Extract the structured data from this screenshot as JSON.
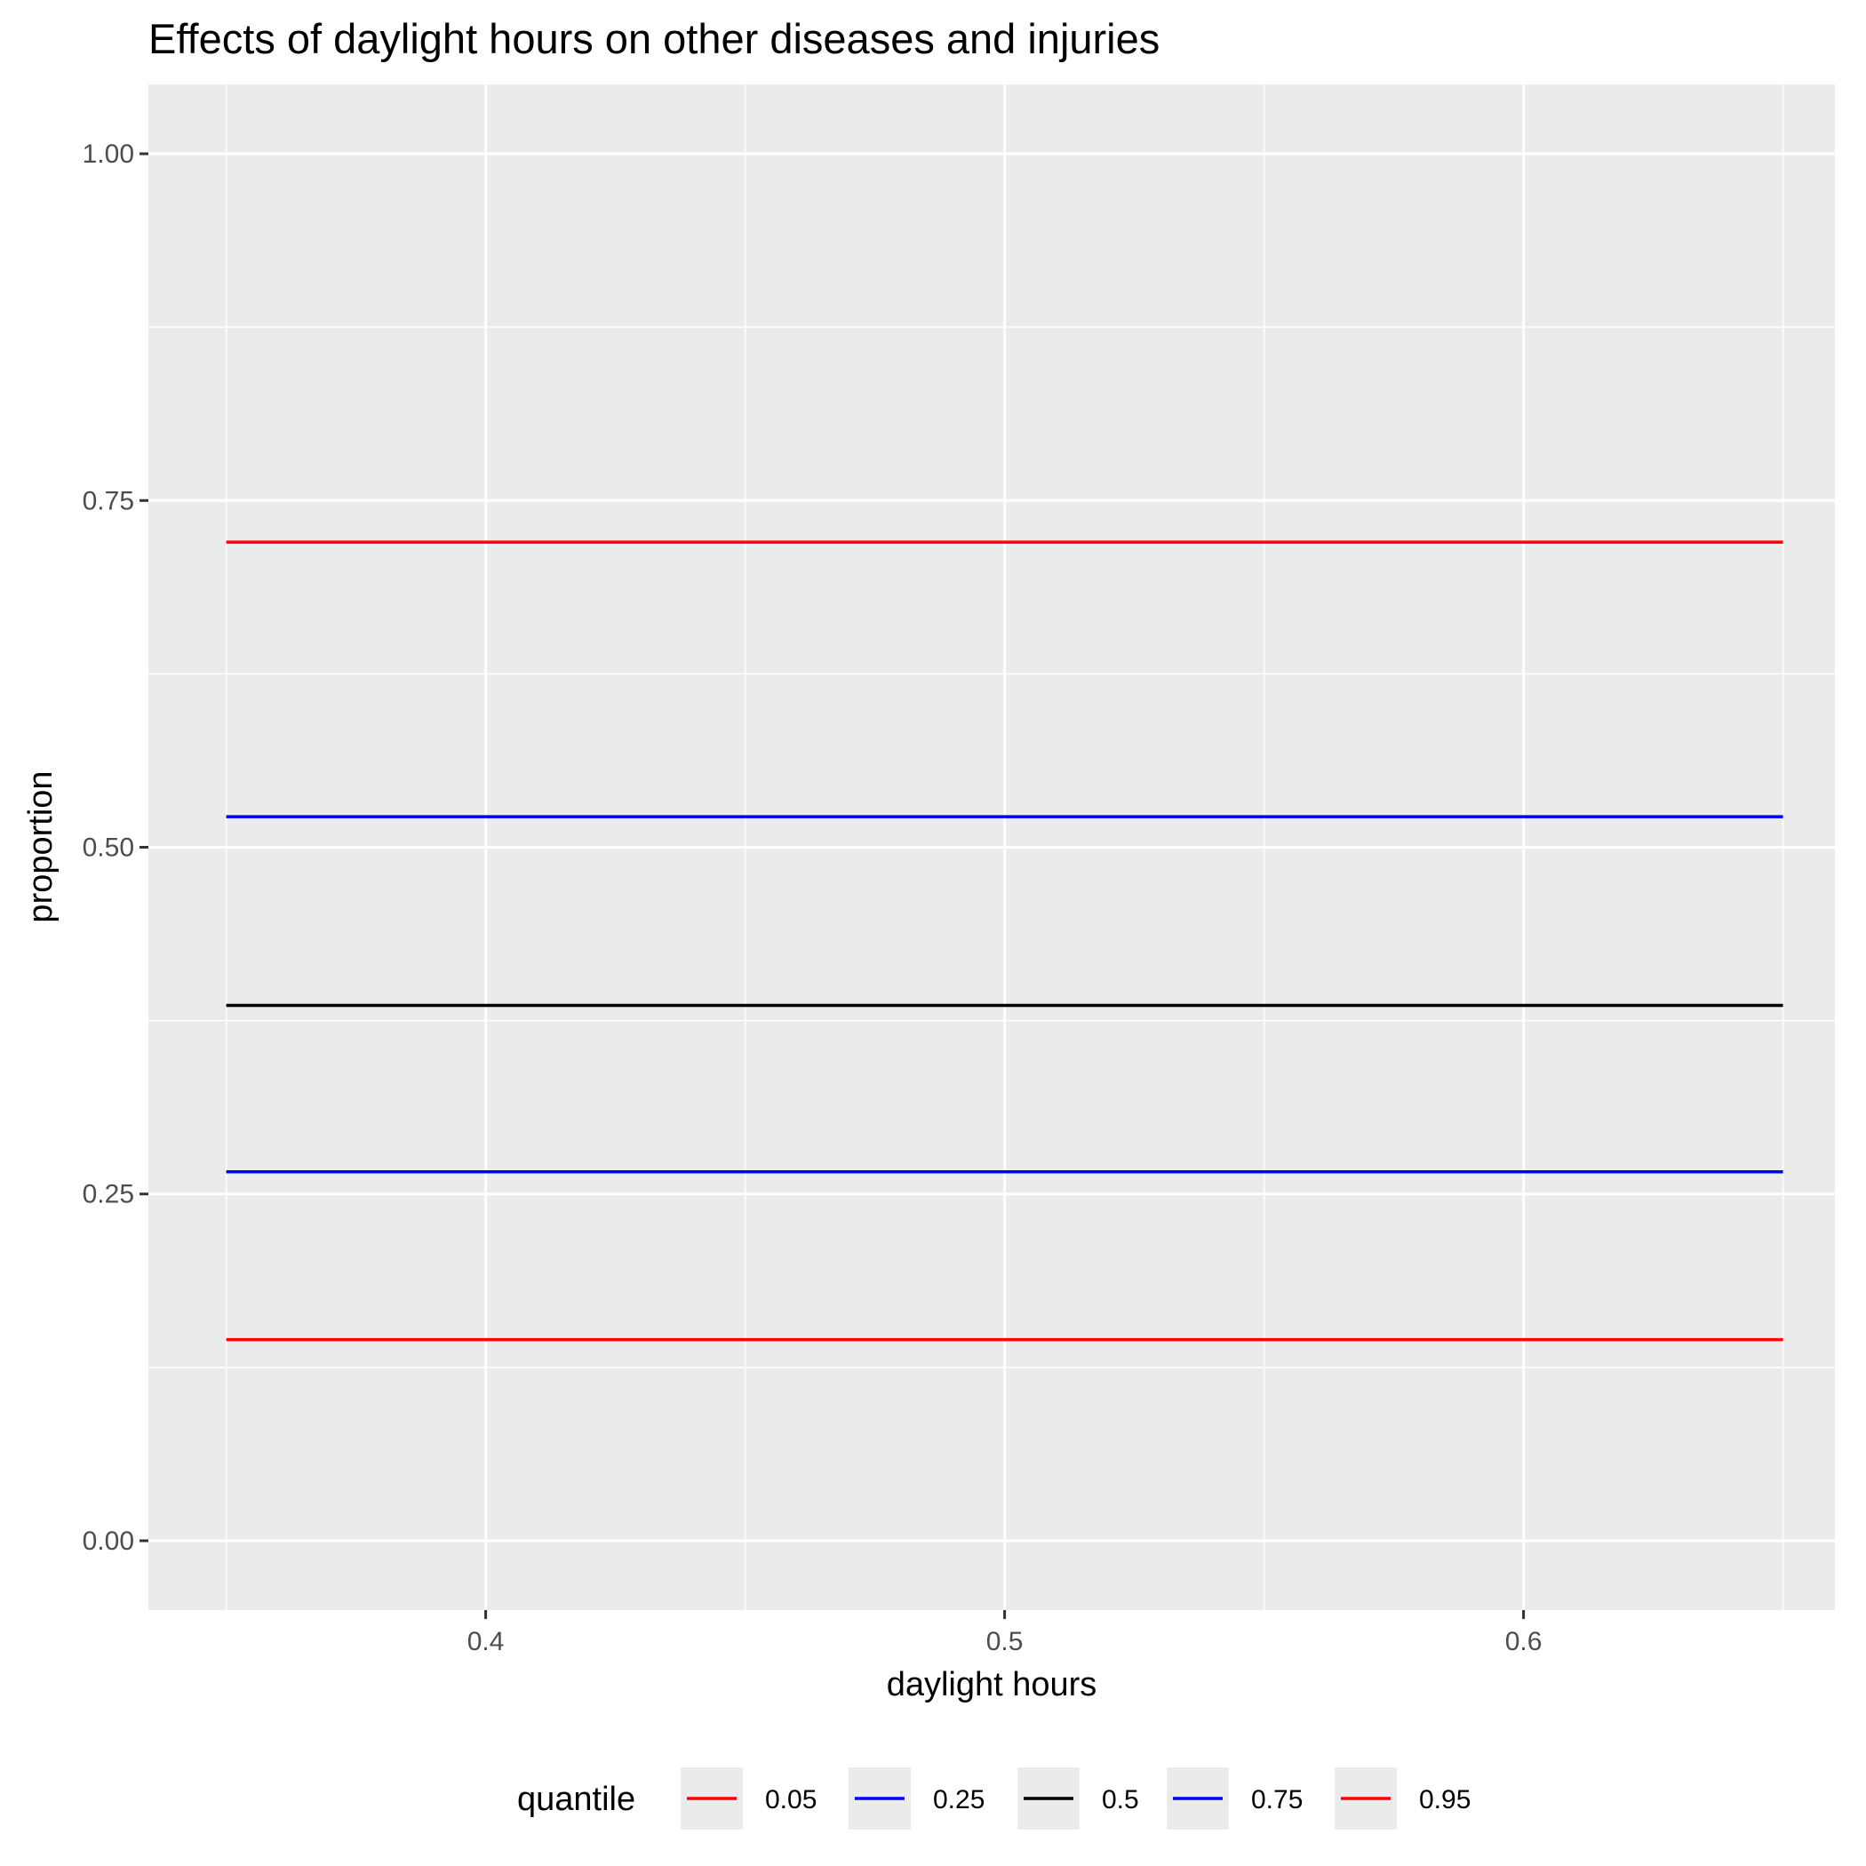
{
  "chart_data": {
    "type": "line",
    "title": "Effects of daylight hours on other diseases and injuries",
    "xlabel": "daylight hours",
    "ylabel": "proportion",
    "xlim": [
      0.335,
      0.66
    ],
    "ylim": [
      -0.05,
      1.05
    ],
    "x_ticks": [
      0.4,
      0.5,
      0.6
    ],
    "x_tick_labels": [
      "0.4",
      "0.5",
      "0.6"
    ],
    "x_minor": [
      0.35,
      0.45,
      0.55,
      0.65
    ],
    "y_ticks": [
      0.0,
      0.25,
      0.5,
      0.75,
      1.0
    ],
    "y_tick_labels": [
      "0.00",
      "0.25",
      "0.50",
      "0.75",
      "1.00"
    ],
    "y_minor": [
      0.125,
      0.375,
      0.625,
      0.875
    ],
    "grid": true,
    "legend_position": "bottom",
    "legend_title": "quantile",
    "series": [
      {
        "name": "0.05",
        "color": "#ff0000",
        "x": [
          0.35,
          0.65
        ],
        "y": [
          0.145,
          0.145
        ]
      },
      {
        "name": "0.25",
        "color": "#0000ff",
        "x": [
          0.35,
          0.65
        ],
        "y": [
          0.266,
          0.266
        ]
      },
      {
        "name": "0.5",
        "color": "#000000",
        "x": [
          0.35,
          0.65
        ],
        "y": [
          0.386,
          0.386
        ]
      },
      {
        "name": "0.75",
        "color": "#0000ff",
        "x": [
          0.35,
          0.65
        ],
        "y": [
          0.522,
          0.522
        ]
      },
      {
        "name": "0.95",
        "color": "#ff0000",
        "x": [
          0.35,
          0.65
        ],
        "y": [
          0.72,
          0.72
        ]
      }
    ],
    "colors": {
      "panel_background": "#ebebeb",
      "grid_line": "#ffffff",
      "tick_mark": "#333333"
    }
  }
}
